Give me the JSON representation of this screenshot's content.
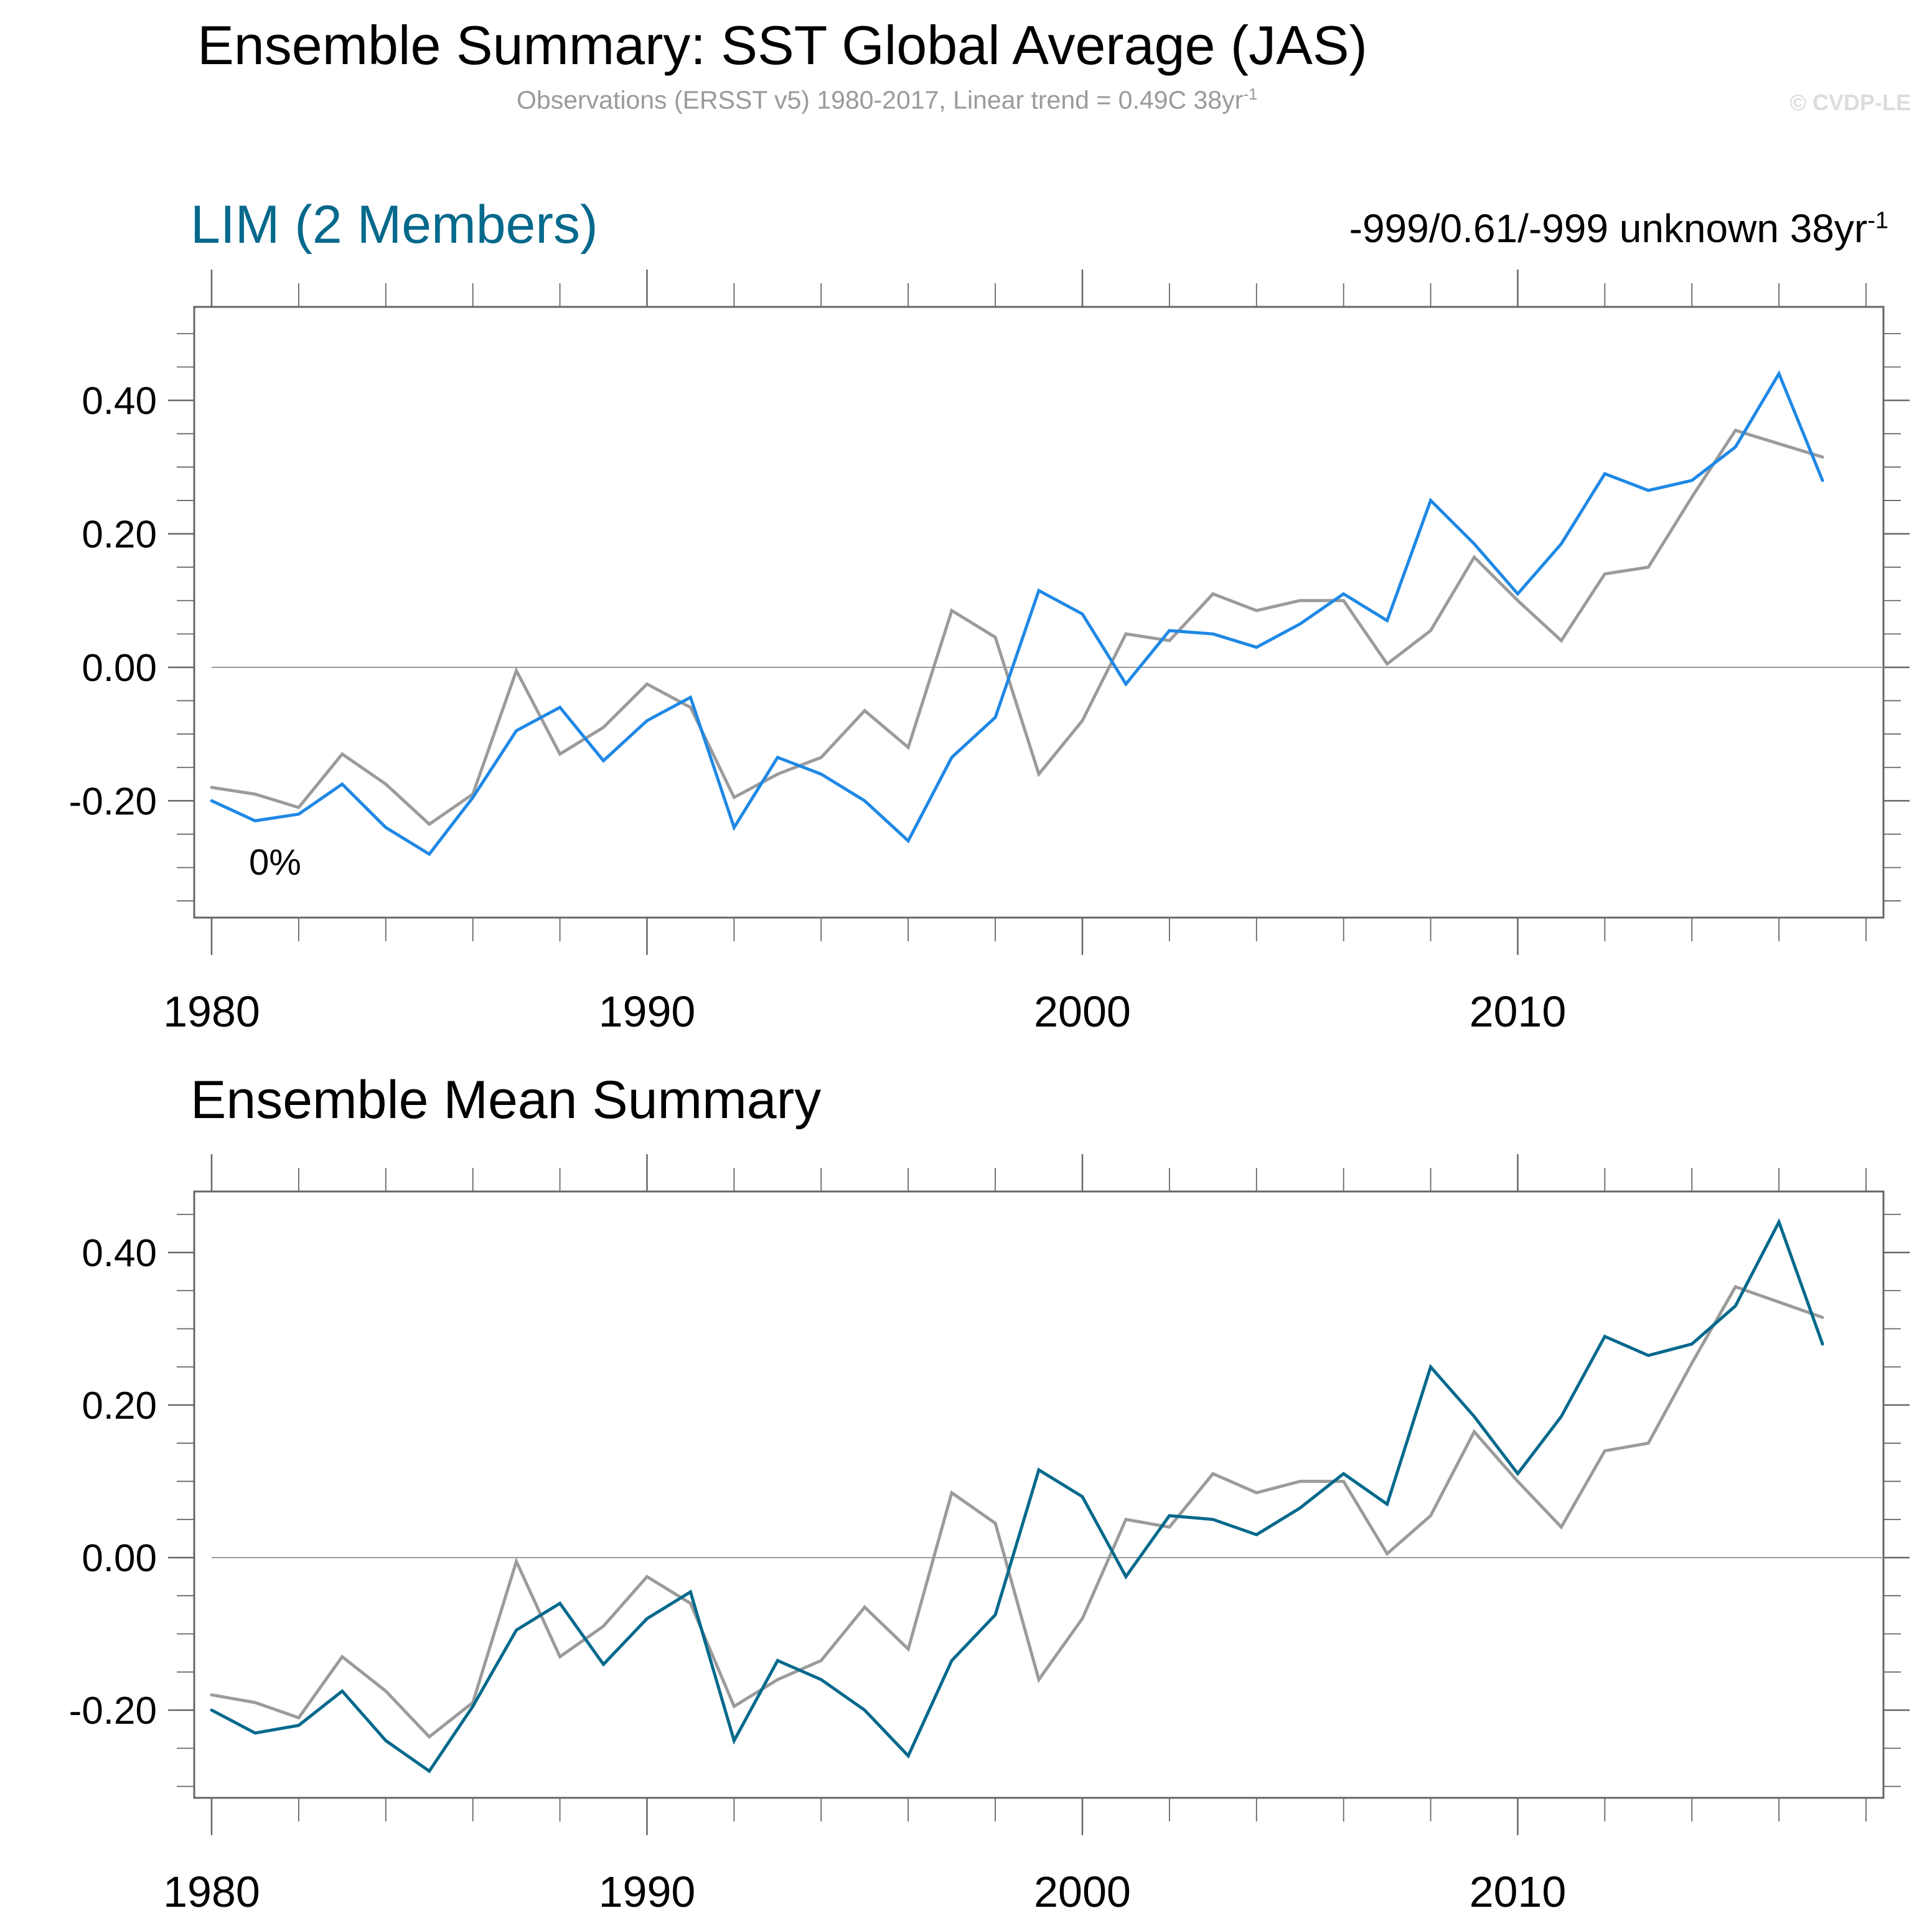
{
  "header": {
    "title": "Ensemble Summary: SST Global Average (JAS)",
    "subtitle_main": "Observations (ERSST v5) 1980-2017, Linear trend = 0.49C 38yr",
    "subtitle_sup": "-1",
    "watermark": "© CVDP-LE"
  },
  "colors": {
    "observations": "#9b9b9b",
    "lim_member": "#1e88e5",
    "ensemble_mean": "#05698c",
    "lim_title": "#05698c",
    "axis": "#666666",
    "zero_line": "#9a9a9a"
  },
  "chart_data": [
    {
      "type": "line",
      "title": "LIM (2 Members)",
      "right_annotation": "-999/0.61/-999 unknown 38yr",
      "right_annotation_sup": "-1",
      "inset_label": "0%",
      "xlabel": "",
      "ylabel": "",
      "xlim": [
        1979.6,
        2018.4
      ],
      "ylim": [
        -0.375,
        0.54
      ],
      "xticks": [
        1980,
        1990,
        2000,
        2010
      ],
      "xtick_labels": [
        "1980",
        "1990",
        "2000",
        "2010"
      ],
      "yticks": [
        -0.2,
        0.0,
        0.2,
        0.4
      ],
      "ytick_labels": [
        "-0.20",
        "0.00",
        "0.20",
        "0.40"
      ],
      "grid": false,
      "zero_line": true,
      "x": [
        1980,
        1981,
        1982,
        1983,
        1984,
        1985,
        1986,
        1987,
        1988,
        1989,
        1990,
        1991,
        1992,
        1993,
        1994,
        1995,
        1996,
        1997,
        1998,
        1999,
        2000,
        2001,
        2002,
        2003,
        2004,
        2005,
        2006,
        2007,
        2008,
        2009,
        2010,
        2011,
        2012,
        2013,
        2014,
        2015,
        2016,
        2017
      ],
      "series": [
        {
          "name": "Observations (ERSST v5)",
          "color_key": "observations",
          "values": [
            -0.18,
            -0.19,
            -0.21,
            -0.13,
            -0.175,
            -0.235,
            -0.19,
            -0.005,
            -0.13,
            -0.09,
            -0.025,
            -0.06,
            -0.195,
            -0.16,
            -0.135,
            -0.065,
            -0.12,
            0.085,
            0.045,
            -0.16,
            -0.08,
            0.05,
            0.04,
            0.11,
            0.085,
            0.1,
            0.1,
            0.005,
            0.055,
            0.165,
            0.1,
            0.04,
            0.14,
            0.15,
            0.255,
            0.355,
            0.335,
            0.315
          ]
        },
        {
          "name": "LIM member",
          "color_key": "lim_member",
          "values": [
            -0.2,
            -0.23,
            -0.22,
            -0.175,
            -0.24,
            -0.28,
            -0.195,
            -0.095,
            -0.06,
            -0.14,
            -0.08,
            -0.045,
            -0.24,
            -0.135,
            -0.16,
            -0.2,
            -0.26,
            -0.135,
            -0.075,
            0.115,
            0.08,
            -0.025,
            0.055,
            0.05,
            0.03,
            0.065,
            0.11,
            0.07,
            0.25,
            0.185,
            0.11,
            0.185,
            0.29,
            0.265,
            0.28,
            0.33,
            0.44,
            0.28
          ]
        }
      ]
    },
    {
      "type": "line",
      "title": "Ensemble Mean Summary",
      "xlabel": "",
      "ylabel": "",
      "xlim": [
        1979.6,
        2018.4
      ],
      "ylim": [
        -0.315,
        0.48
      ],
      "xticks": [
        1980,
        1990,
        2000,
        2010
      ],
      "xtick_labels": [
        "1980",
        "1990",
        "2000",
        "2010"
      ],
      "yticks": [
        -0.2,
        0.0,
        0.2,
        0.4
      ],
      "ytick_labels": [
        "-0.20",
        "0.00",
        "0.20",
        "0.40"
      ],
      "grid": false,
      "zero_line": true,
      "x": [
        1980,
        1981,
        1982,
        1983,
        1984,
        1985,
        1986,
        1987,
        1988,
        1989,
        1990,
        1991,
        1992,
        1993,
        1994,
        1995,
        1996,
        1997,
        1998,
        1999,
        2000,
        2001,
        2002,
        2003,
        2004,
        2005,
        2006,
        2007,
        2008,
        2009,
        2010,
        2011,
        2012,
        2013,
        2014,
        2015,
        2016,
        2017
      ],
      "series": [
        {
          "name": "Observations (ERSST v5)",
          "color_key": "observations",
          "values": [
            -0.18,
            -0.19,
            -0.21,
            -0.13,
            -0.175,
            -0.235,
            -0.19,
            -0.005,
            -0.13,
            -0.09,
            -0.025,
            -0.06,
            -0.195,
            -0.16,
            -0.135,
            -0.065,
            -0.12,
            0.085,
            0.045,
            -0.16,
            -0.08,
            0.05,
            0.04,
            0.11,
            0.085,
            0.1,
            0.1,
            0.005,
            0.055,
            0.165,
            0.1,
            0.04,
            0.14,
            0.15,
            0.255,
            0.355,
            0.335,
            0.315
          ]
        },
        {
          "name": "LIM ensemble mean",
          "color_key": "ensemble_mean",
          "values": [
            -0.2,
            -0.23,
            -0.22,
            -0.175,
            -0.24,
            -0.28,
            -0.195,
            -0.095,
            -0.06,
            -0.14,
            -0.08,
            -0.045,
            -0.24,
            -0.135,
            -0.16,
            -0.2,
            -0.26,
            -0.135,
            -0.075,
            0.115,
            0.08,
            -0.025,
            0.055,
            0.05,
            0.03,
            0.065,
            0.11,
            0.07,
            0.25,
            0.185,
            0.11,
            0.185,
            0.29,
            0.265,
            0.28,
            0.33,
            0.44,
            0.28
          ]
        }
      ]
    }
  ]
}
